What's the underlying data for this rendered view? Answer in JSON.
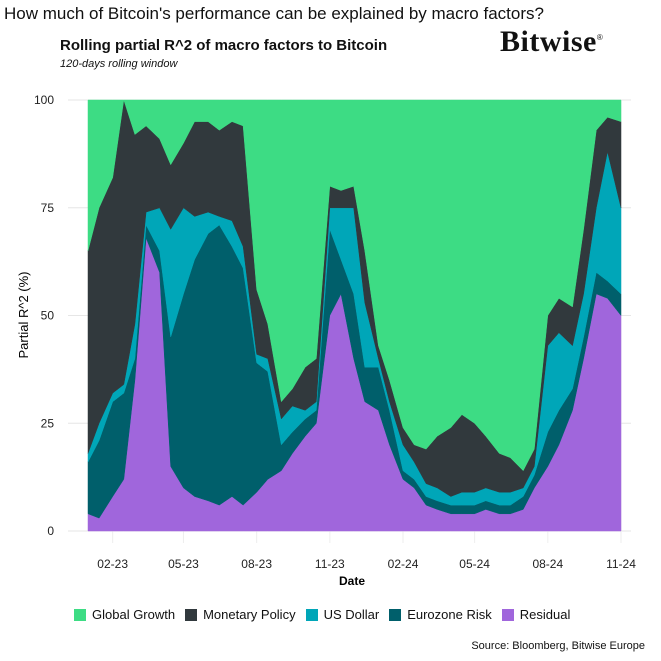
{
  "header": {
    "question": "How much of Bitcoin's performance can be explained by macro factors?",
    "title": "Rolling partial R^2 of macro factors to Bitcoin",
    "subtitle": "120-days rolling window",
    "brand": "Bitwise",
    "brand_mark": "®"
  },
  "source": "Source: Bloomberg, Bitwise Europe",
  "chart_data": {
    "type": "area",
    "stacked": true,
    "xlabel": "Date",
    "ylabel": "Partial R^2 (%)",
    "ylim": [
      0,
      100
    ],
    "yticks": [
      "0",
      "25",
      "50",
      "75",
      "100"
    ],
    "xticks": [
      "02-23",
      "05-23",
      "08-23",
      "11-23",
      "02-24",
      "05-24",
      "08-24",
      "11-24"
    ],
    "grid": true,
    "legend_position": "bottom",
    "x": [
      "2023-01-01",
      "2023-01-15",
      "2023-02-01",
      "2023-02-15",
      "2023-03-01",
      "2023-03-15",
      "2023-04-01",
      "2023-04-15",
      "2023-05-01",
      "2023-05-15",
      "2023-06-01",
      "2023-06-15",
      "2023-07-01",
      "2023-07-15",
      "2023-08-01",
      "2023-08-15",
      "2023-09-01",
      "2023-09-15",
      "2023-10-01",
      "2023-10-15",
      "2023-11-01",
      "2023-11-15",
      "2023-12-01",
      "2023-12-15",
      "2024-01-01",
      "2024-01-15",
      "2024-02-01",
      "2024-02-15",
      "2024-03-01",
      "2024-03-15",
      "2024-04-01",
      "2024-04-15",
      "2024-05-01",
      "2024-05-15",
      "2024-06-01",
      "2024-06-15",
      "2024-07-01",
      "2024-07-15",
      "2024-08-01",
      "2024-08-15",
      "2024-09-01",
      "2024-09-15",
      "2024-10-01",
      "2024-10-15",
      "2024-11-01"
    ],
    "series": [
      {
        "name": "Residual",
        "color": "#A066DC",
        "values": [
          4,
          3,
          8,
          12,
          35,
          68,
          60,
          15,
          10,
          8,
          7,
          6,
          8,
          6,
          9,
          12,
          14,
          18,
          22,
          25,
          50,
          55,
          40,
          30,
          28,
          20,
          12,
          10,
          6,
          5,
          4,
          4,
          4,
          5,
          4,
          4,
          5,
          10,
          15,
          20,
          28,
          40,
          55,
          54,
          50
        ]
      },
      {
        "name": "Eurozone Risk",
        "color": "#005F6B",
        "values": [
          12,
          18,
          22,
          20,
          5,
          3,
          5,
          30,
          45,
          55,
          62,
          65,
          58,
          55,
          30,
          25,
          6,
          5,
          4,
          3,
          20,
          8,
          15,
          8,
          10,
          8,
          2,
          2,
          2,
          2,
          2,
          2,
          2,
          2,
          2,
          2,
          3,
          3,
          8,
          8,
          5,
          5,
          5,
          4,
          5
        ]
      },
      {
        "name": "US Dollar",
        "color": "#00A6B8",
        "values": [
          2,
          4,
          2,
          2,
          8,
          3,
          10,
          25,
          20,
          10,
          5,
          2,
          6,
          5,
          2,
          3,
          6,
          6,
          2,
          2,
          5,
          12,
          20,
          15,
          2,
          2,
          6,
          4,
          3,
          3,
          2,
          3,
          3,
          3,
          3,
          3,
          2,
          2,
          20,
          18,
          10,
          10,
          15,
          30,
          20
        ]
      },
      {
        "name": "Monetary Policy",
        "color": "#31393D",
        "values": [
          47,
          50,
          50,
          66,
          44,
          20,
          16,
          15,
          15,
          22,
          21,
          20,
          23,
          28,
          15,
          8,
          4,
          4,
          10,
          10,
          5,
          4,
          5,
          12,
          3,
          5,
          4,
          4,
          8,
          12,
          16,
          18,
          16,
          12,
          9,
          8,
          4,
          4,
          7,
          8,
          9,
          15,
          18,
          8,
          20
        ]
      },
      {
        "name": "Global Growth",
        "color": "#3DDC84",
        "values": [
          35,
          25,
          18,
          0,
          8,
          6,
          9,
          15,
          10,
          5,
          5,
          7,
          5,
          6,
          44,
          52,
          70,
          67,
          62,
          60,
          20,
          21,
          20,
          35,
          57,
          65,
          76,
          80,
          81,
          78,
          76,
          73,
          75,
          78,
          82,
          83,
          86,
          81,
          50,
          46,
          48,
          30,
          7,
          4,
          5
        ]
      }
    ],
    "legend": [
      "Global Growth",
      "Monetary Policy",
      "US Dollar",
      "Eurozone Risk",
      "Residual"
    ]
  }
}
